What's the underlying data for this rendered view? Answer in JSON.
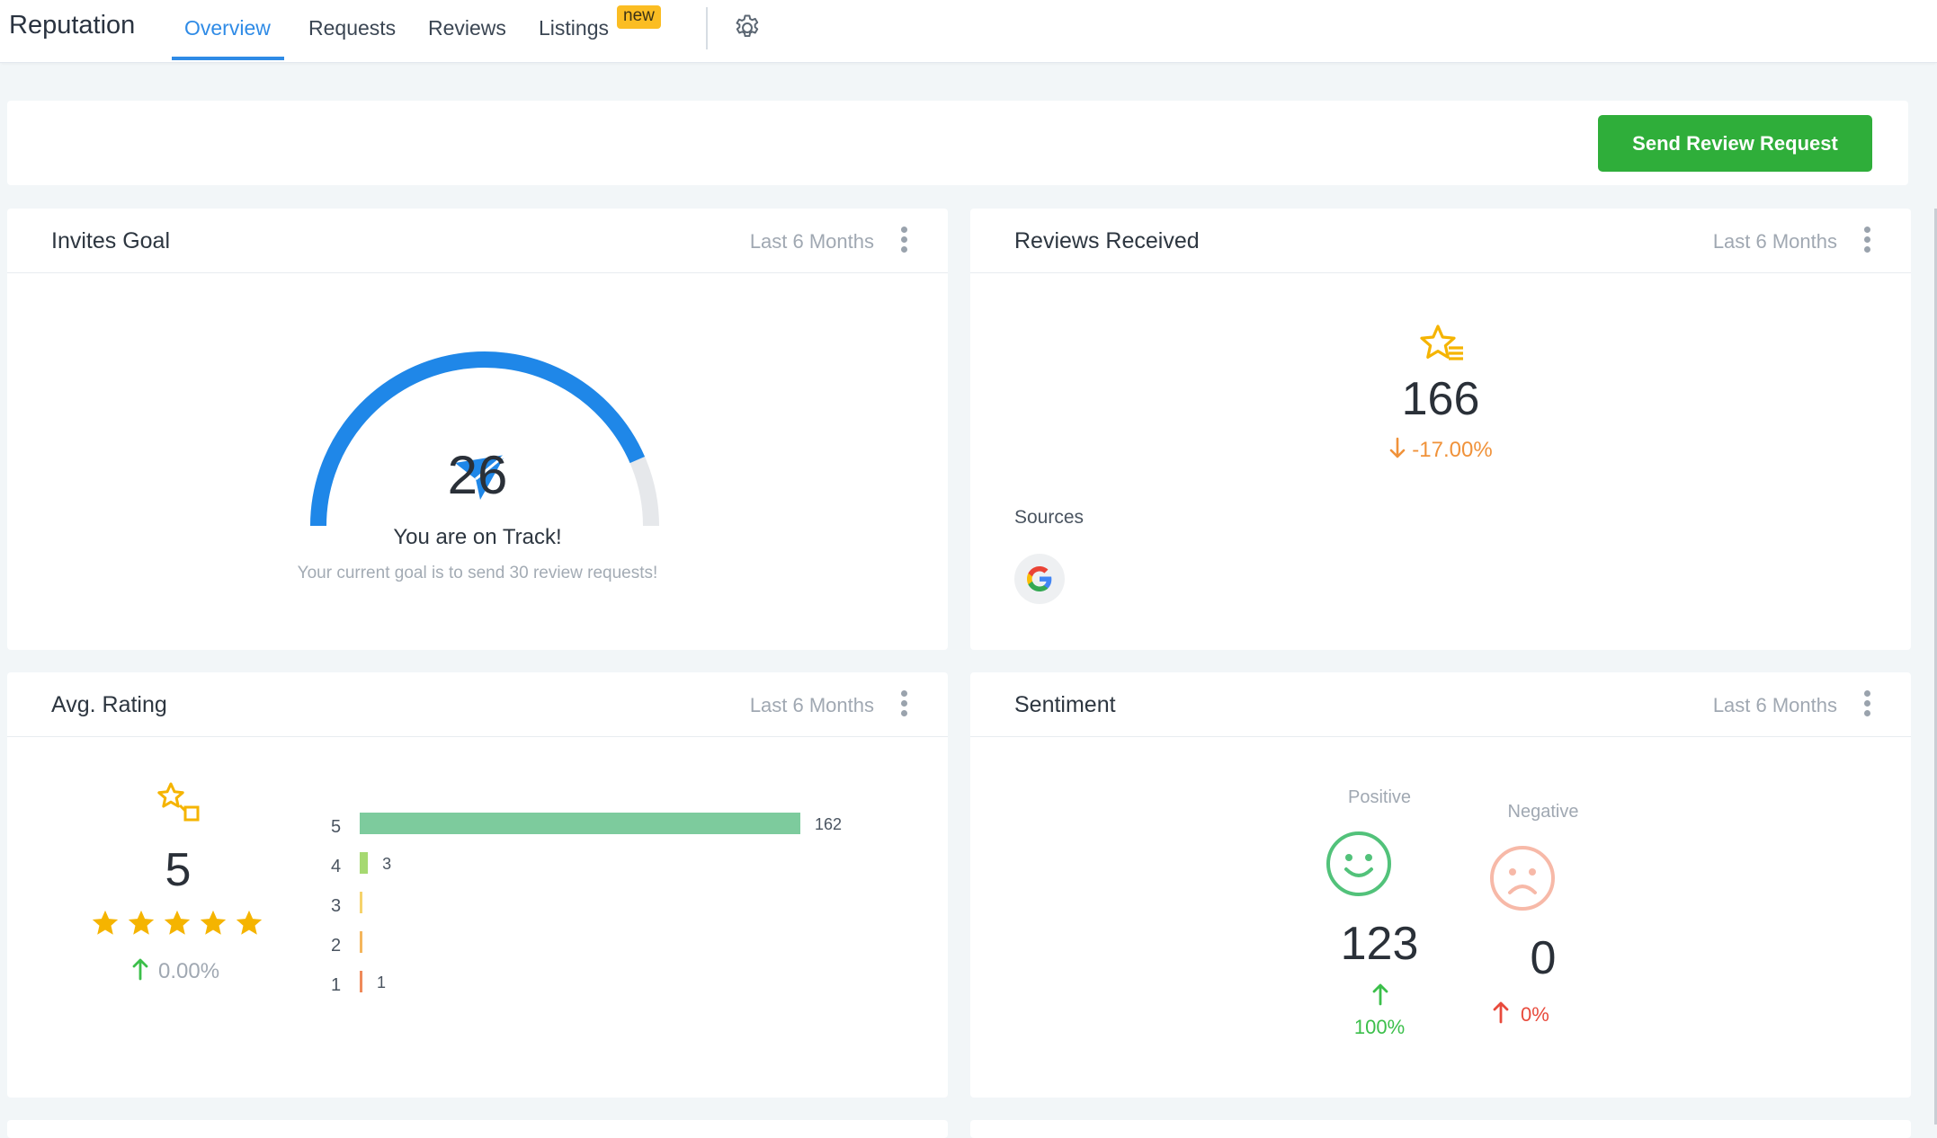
{
  "nav": {
    "brand": "Reputation",
    "tabs": [
      {
        "label": "Overview"
      },
      {
        "label": "Requests"
      },
      {
        "label": "Reviews"
      },
      {
        "label": "Listings"
      }
    ],
    "new_badge": "new"
  },
  "actions": {
    "send_review_request": "Send Review Request"
  },
  "invites_goal": {
    "title": "Invites Goal",
    "range": "Last 6 Months",
    "count": "26",
    "status": "You are on Track!",
    "goal_text": "Your current goal is to send 30 review requests!",
    "progress": 0.87,
    "colors": {
      "gauge": "#1f87e8",
      "track": "#e6e8eb"
    }
  },
  "reviews_received": {
    "title": "Reviews Received",
    "range": "Last 6 Months",
    "count": "166",
    "change": "-17.00%",
    "sources_label": "Sources",
    "sources": [
      "google"
    ],
    "colors": {
      "change": "#f0923a",
      "star": "#f5b400"
    }
  },
  "avg_rating": {
    "title": "Avg. Rating",
    "range": "Last 6 Months",
    "value": "5",
    "stars": 5,
    "change": "0.00%",
    "chart_data": {
      "type": "bar",
      "categories": [
        "5",
        "4",
        "3",
        "2",
        "1"
      ],
      "values": [
        162,
        3,
        0,
        0,
        1
      ],
      "colors": [
        "#7dcb9d",
        "#a6d971",
        "#f6d36b",
        "#f5b65c",
        "#ef8a5a"
      ]
    }
  },
  "sentiment": {
    "title": "Sentiment",
    "range": "Last 6 Months",
    "positive": {
      "label": "Positive",
      "count": "123",
      "change": "100%",
      "color": "#52c27a"
    },
    "negative": {
      "label": "Negative",
      "count": "0",
      "change": "0%",
      "color": "#f7b9a8"
    }
  }
}
